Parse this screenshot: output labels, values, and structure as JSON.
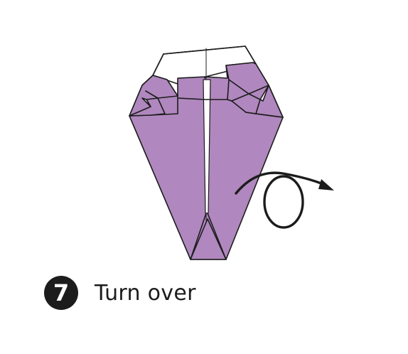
{
  "step": {
    "number": "7",
    "instruction": "Turn over"
  },
  "colors": {
    "paper_color": "#b087be",
    "paper_back": "#ffffff",
    "line": "#1c1c1c",
    "badge_background": "#1c1c1c",
    "badge_text": "#ffffff"
  },
  "icons": {
    "turn_over": "turn-over-arrow-icon"
  }
}
